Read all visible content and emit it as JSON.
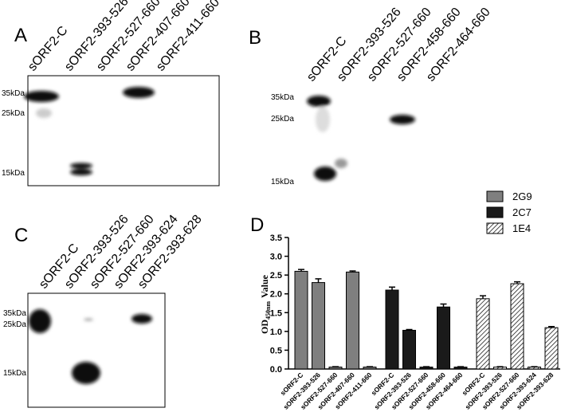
{
  "panels": [
    {
      "label": "A",
      "lanes": [
        "sORF2-C",
        "sORF2-393-526",
        "sORF2-527-660",
        "sORF2-407-660",
        "sORF2-411-660"
      ],
      "markers": [
        "35kDa",
        "25kDa",
        "15kDa"
      ]
    },
    {
      "label": "B",
      "lanes": [
        "sORF2-C",
        "sORF2-393-526",
        "sORF2-527-660",
        "sORF2-458-660",
        "sORF2-464-660"
      ],
      "markers": [
        "35kDa",
        "25kDa",
        "15kDa"
      ]
    },
    {
      "label": "C",
      "lanes": [
        "sORF2-C",
        "sORF2-393-526",
        "sORF2-527-660",
        "sORF2-393-624",
        "sORF2-393-628"
      ],
      "markers": [
        "35kDa",
        "25kDa",
        "15kDa"
      ]
    }
  ],
  "chart_data": {
    "type": "bar",
    "panel_label": "D",
    "y_label": "OD",
    "y_label_sub": "450nm",
    "y_label_suffix": "Value",
    "categories": [
      "sORF2-C",
      "sORF2-393-526",
      "sORF2-527-660",
      "sORF2-407-660",
      "sORF2-411-660",
      "sORF2-C",
      "sORF2-393-526",
      "sORF2-527-660",
      "sORF2-458-660",
      "sORF2-464-660",
      "sORF2-C",
      "sORF2-393-526",
      "sORF2-527-660",
      "sORF2-393-624",
      "sORF2-393-628"
    ],
    "series": [
      {
        "name": "2G9",
        "color": "#7f7f7f",
        "hatch": false,
        "values": [
          2.6,
          2.3,
          0.05,
          2.58,
          0.05,
          null,
          null,
          null,
          null,
          null,
          null,
          null,
          null,
          null,
          null
        ],
        "errors": [
          0.05,
          0.1,
          0.01,
          0.03,
          0.01,
          null,
          null,
          null,
          null,
          null,
          null,
          null,
          null,
          null,
          null
        ]
      },
      {
        "name": "2C7",
        "color": "#1a1a1a",
        "hatch": false,
        "values": [
          null,
          null,
          null,
          null,
          null,
          2.1,
          1.03,
          0.05,
          1.65,
          0.05,
          null,
          null,
          null,
          null,
          null
        ],
        "errors": [
          null,
          null,
          null,
          null,
          null,
          0.08,
          0.02,
          0.01,
          0.08,
          0.01,
          null,
          null,
          null,
          null,
          null
        ]
      },
      {
        "name": "1E4",
        "color": "#ffffff",
        "hatch": true,
        "values": [
          null,
          null,
          null,
          null,
          null,
          null,
          null,
          null,
          null,
          null,
          1.87,
          0.05,
          2.27,
          0.05,
          1.1
        ],
        "errors": [
          null,
          null,
          null,
          null,
          null,
          null,
          null,
          null,
          null,
          null,
          0.08,
          0.01,
          0.05,
          0.01,
          0.03
        ]
      }
    ],
    "ylim": [
      0,
      3.5
    ],
    "yticks": [
      {
        "value": 0,
        "label": "0.0"
      },
      0.5,
      {
        "value": 1,
        "label": "1.0"
      },
      1.5,
      {
        "value": 2,
        "label": "2.0"
      },
      2.5,
      {
        "value": 3,
        "label": "3.0"
      },
      3.5
    ]
  }
}
